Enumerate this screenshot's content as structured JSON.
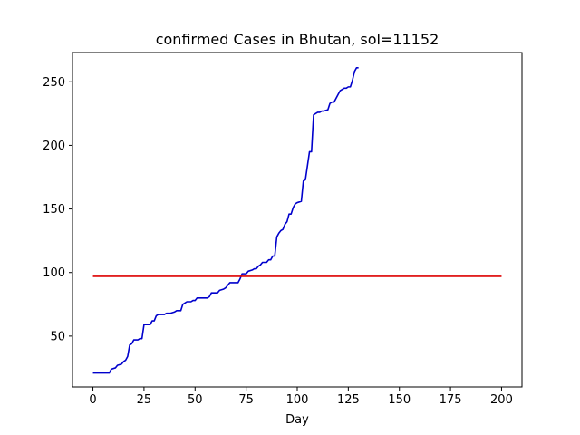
{
  "chart_data": {
    "type": "line",
    "title": "confirmed Cases in Bhutan, sol=11152",
    "xlabel": "Day",
    "ylabel": "",
    "xlim": [
      -10,
      210
    ],
    "ylim": [
      10,
      273
    ],
    "xticks": [
      0,
      25,
      50,
      75,
      100,
      125,
      150,
      175,
      200
    ],
    "yticks": [
      50,
      100,
      150,
      200,
      250
    ],
    "grid": false,
    "series": [
      {
        "color": "#0000cc",
        "points": [
          [
            0,
            21
          ],
          [
            8,
            21
          ],
          [
            9,
            24
          ],
          [
            11,
            25
          ],
          [
            12,
            27
          ],
          [
            14,
            28
          ],
          [
            15,
            30
          ],
          [
            16,
            31
          ],
          [
            17,
            34
          ],
          [
            18,
            43
          ],
          [
            19,
            44
          ],
          [
            20,
            47
          ],
          [
            22,
            47
          ],
          [
            23,
            48
          ],
          [
            24,
            48
          ],
          [
            25,
            59
          ],
          [
            28,
            59
          ],
          [
            29,
            62
          ],
          [
            30,
            62
          ],
          [
            31,
            66
          ],
          [
            32,
            67
          ],
          [
            35,
            67
          ],
          [
            36,
            68
          ],
          [
            38,
            68
          ],
          [
            40,
            69
          ],
          [
            41,
            70
          ],
          [
            43,
            70
          ],
          [
            44,
            75
          ],
          [
            45,
            76
          ],
          [
            46,
            77
          ],
          [
            48,
            77
          ],
          [
            49,
            78
          ],
          [
            50,
            78
          ],
          [
            51,
            80
          ],
          [
            53,
            80
          ],
          [
            56,
            80
          ],
          [
            57,
            81
          ],
          [
            58,
            84
          ],
          [
            59,
            84
          ],
          [
            61,
            84
          ],
          [
            62,
            86
          ],
          [
            64,
            87
          ],
          [
            65,
            88
          ],
          [
            66,
            90
          ],
          [
            67,
            92
          ],
          [
            68,
            92
          ],
          [
            71,
            92
          ],
          [
            72,
            95
          ],
          [
            73,
            99
          ],
          [
            75,
            99
          ],
          [
            76,
            101
          ],
          [
            78,
            102
          ],
          [
            79,
            103
          ],
          [
            80,
            103
          ],
          [
            81,
            105
          ],
          [
            82,
            106
          ],
          [
            83,
            108
          ],
          [
            85,
            108
          ],
          [
            86,
            110
          ],
          [
            87,
            110
          ],
          [
            88,
            113
          ],
          [
            89,
            113
          ],
          [
            90,
            128
          ],
          [
            91,
            131
          ],
          [
            92,
            133
          ],
          [
            93,
            134
          ],
          [
            94,
            138
          ],
          [
            95,
            140
          ],
          [
            96,
            146
          ],
          [
            97,
            146
          ],
          [
            98,
            151
          ],
          [
            99,
            154
          ],
          [
            100,
            155
          ],
          [
            102,
            156
          ],
          [
            103,
            172
          ],
          [
            104,
            173
          ],
          [
            105,
            184
          ],
          [
            106,
            195
          ],
          [
            107,
            195
          ],
          [
            108,
            224
          ],
          [
            109,
            225
          ],
          [
            110,
            226
          ],
          [
            111,
            226
          ],
          [
            112,
            227
          ],
          [
            113,
            227
          ],
          [
            115,
            228
          ],
          [
            116,
            233
          ],
          [
            117,
            234
          ],
          [
            118,
            234
          ],
          [
            119,
            237
          ],
          [
            120,
            240
          ],
          [
            121,
            243
          ],
          [
            122,
            244
          ],
          [
            123,
            245
          ],
          [
            124,
            245
          ],
          [
            125,
            246
          ],
          [
            126,
            246
          ],
          [
            127,
            251
          ],
          [
            128,
            258
          ],
          [
            129,
            261
          ],
          [
            130,
            261
          ]
        ]
      },
      {
        "color": "#dd0000",
        "points": [
          [
            0,
            97
          ],
          [
            200,
            97
          ]
        ]
      }
    ]
  }
}
